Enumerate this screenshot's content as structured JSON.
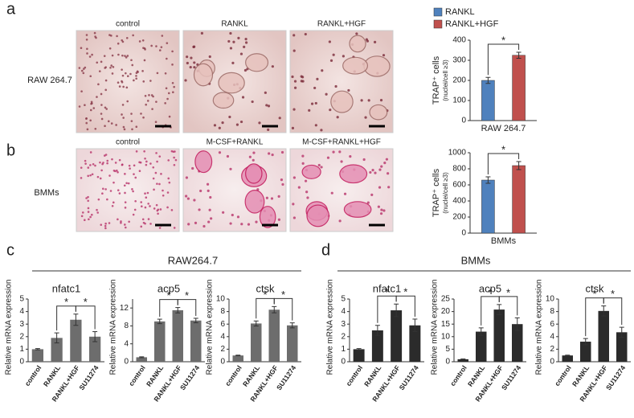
{
  "panels": [
    {
      "letter": "a",
      "row_label": "RAW 264.7",
      "image_labels": [
        "control",
        "RANKL",
        "RANKL+HGF"
      ]
    },
    {
      "letter": "b",
      "row_label": "BMMs",
      "image_labels": [
        "control",
        "M-CSF+RANKL",
        "M-CSF+RANKL+HGF"
      ]
    },
    {
      "letter": "c",
      "title": "RAW264.7"
    },
    {
      "letter": "d",
      "title": "BMMs"
    }
  ],
  "chart_data": [
    {
      "type": "groupbar",
      "ylabel": "TRAP⁺ cells",
      "ysublabel": "(nuclei/cell ≥3)",
      "categories": [
        "RAW 264.7"
      ],
      "series": [
        {
          "name": "RANKL",
          "color": "#4f81bd",
          "values": [
            200
          ],
          "errors": [
            15
          ]
        },
        {
          "name": "RANKL+HGF",
          "color": "#c0504d",
          "values": [
            325
          ],
          "errors": [
            15
          ]
        }
      ],
      "ylim": [
        0,
        400
      ],
      "yticks": [
        0,
        100,
        200,
        300,
        400
      ],
      "legend": true,
      "annotations": [
        "*"
      ]
    },
    {
      "type": "groupbar",
      "ylabel": "TRAP⁺ cells",
      "ysublabel": "(nuclei/cell ≥3)",
      "categories": [
        "BMMs"
      ],
      "series": [
        {
          "name": "RANKL",
          "color": "#4f81bd",
          "values": [
            660
          ],
          "errors": [
            40
          ]
        },
        {
          "name": "RANKL+HGF",
          "color": "#c0504d",
          "values": [
            840
          ],
          "errors": [
            50
          ]
        }
      ],
      "ylim": [
        0,
        1000
      ],
      "yticks": [
        0,
        200,
        400,
        600,
        800,
        1000
      ],
      "legend": false,
      "annotations": [
        "*"
      ]
    },
    {
      "type": "bar",
      "title": "nfatc1",
      "ylabel": "Relative mRNA expression",
      "categories": [
        "control",
        "RANKL",
        "RANKL+HGF",
        "SU11274"
      ],
      "values": [
        1,
        1.9,
        3.35,
        2.0
      ],
      "errors": [
        0.05,
        0.4,
        0.45,
        0.4
      ],
      "color": "#6d6d6d",
      "ylim": [
        0,
        5
      ],
      "yticks": [
        0,
        1,
        2,
        3,
        4,
        5
      ],
      "annotations": [
        "*",
        "*"
      ]
    },
    {
      "type": "bar",
      "title": "acp5",
      "ylabel": "Relative mRNA expression",
      "categories": [
        "control",
        "RANKL",
        "RANKL+HGF",
        "SU11274"
      ],
      "values": [
        1,
        9,
        11.5,
        9.2
      ],
      "errors": [
        0.1,
        0.5,
        0.6,
        0.5
      ],
      "color": "#6d6d6d",
      "ylim": [
        0,
        14
      ],
      "yticks": [
        0,
        4,
        8,
        12
      ],
      "annotations": [
        "*",
        "*"
      ]
    },
    {
      "type": "bar",
      "title": "ctsk",
      "ylabel": "Relative mRNA expression",
      "categories": [
        "control",
        "RANKL",
        "RANKL+HGF",
        "SU11274"
      ],
      "values": [
        1,
        6.1,
        8.3,
        5.8
      ],
      "errors": [
        0.05,
        0.4,
        0.5,
        0.4
      ],
      "color": "#6d6d6d",
      "ylim": [
        0,
        10
      ],
      "yticks": [
        0,
        2,
        4,
        6,
        8,
        10
      ],
      "annotations": [
        "*",
        "*"
      ]
    },
    {
      "type": "bar",
      "title": "nfatc1",
      "ylabel": "Relative mRNA expression",
      "categories": [
        "control",
        "RANKL",
        "RANKL+HGF",
        "SU11274"
      ],
      "values": [
        1,
        2.5,
        4.1,
        2.9
      ],
      "errors": [
        0.05,
        0.4,
        0.5,
        0.5
      ],
      "color": "#2b2b2b",
      "ylim": [
        0,
        5
      ],
      "yticks": [
        0,
        1,
        2,
        3,
        4,
        5
      ],
      "annotations": [
        "*",
        "*"
      ]
    },
    {
      "type": "bar",
      "title": "acp5",
      "ylabel": "Relative mRNA expression",
      "categories": [
        "control",
        "RANKL",
        "RANKL+HGF",
        "SU11274"
      ],
      "values": [
        1,
        12,
        20.8,
        15
      ],
      "errors": [
        0.1,
        1.5,
        2,
        2.5
      ],
      "color": "#2b2b2b",
      "ylim": [
        0,
        25
      ],
      "yticks": [
        0,
        5,
        10,
        15,
        20,
        25
      ],
      "annotations": [
        "*",
        "*"
      ]
    },
    {
      "type": "bar",
      "title": "ctsk",
      "ylabel": "Relative mRNA expression",
      "categories": [
        "control",
        "RANKL",
        "RANKL+HGF",
        "SU11274"
      ],
      "values": [
        1,
        3.2,
        8.1,
        4.7
      ],
      "errors": [
        0.05,
        0.5,
        0.8,
        0.8
      ],
      "color": "#2b2b2b",
      "ylim": [
        0,
        10
      ],
      "yticks": [
        0,
        2,
        4,
        6,
        8,
        10
      ],
      "annotations": [
        "*",
        "*"
      ]
    }
  ]
}
